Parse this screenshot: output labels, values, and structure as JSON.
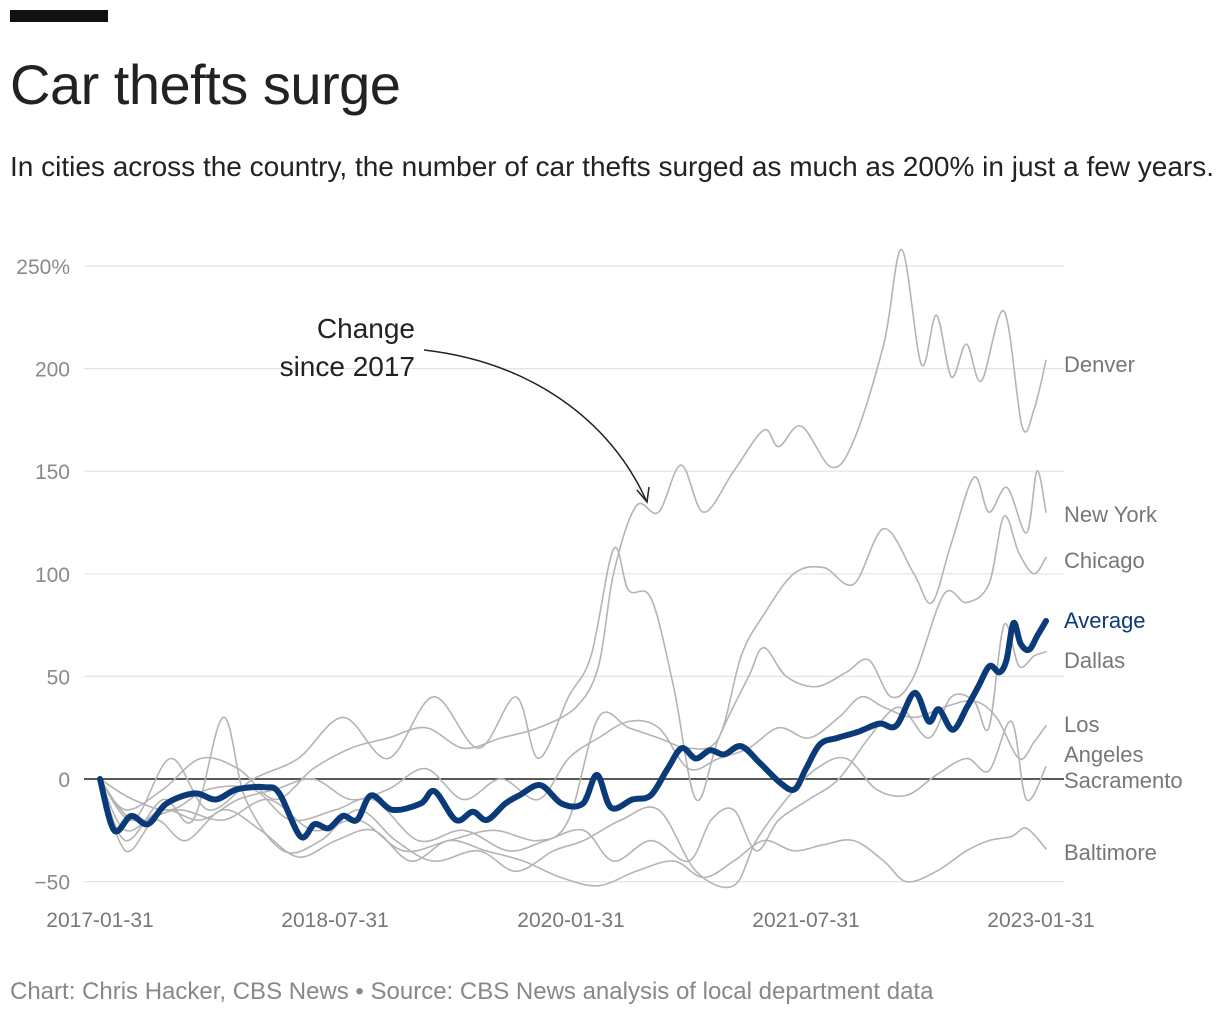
{
  "title": "Car thefts surge",
  "subtitle": "In cities across the country, the number of car thefts surged as much as 200% in just a few years.",
  "footer": "Chart: Chris Hacker, CBS News • Source: CBS News analysis of local department data",
  "annotation": {
    "line1": "Change",
    "line2": "since 2017"
  },
  "chart_data": {
    "type": "line",
    "title": "Car thefts surge",
    "xlabel": "",
    "ylabel": "",
    "x_ticks": [
      "2017-01-31",
      "2018-07-31",
      "2020-01-31",
      "2021-07-31",
      "2023-01-31"
    ],
    "y_ticks": [
      "250%",
      "200",
      "150",
      "100",
      "50",
      "0",
      "−50"
    ],
    "y_tick_values": [
      250,
      200,
      150,
      100,
      50,
      0,
      -50
    ],
    "ylim": [
      -55,
      260
    ],
    "x_range": [
      "2017-01-31",
      "2023-01-31"
    ],
    "grid": true,
    "legend": "direct labels at right end of lines",
    "colors": {
      "average": "#0b3a78",
      "cities": "#b4b4b4",
      "gridline": "#e3e3e3",
      "zero_line": "#222222",
      "city_label": "#777777",
      "tick_label": "#8a8a8a"
    },
    "series": [
      {
        "name": "Denver",
        "label_y": 202,
        "highlight": false,
        "values": [
          [
            2017.08,
            0
          ],
          [
            2017.25,
            -15
          ],
          [
            2017.5,
            -5
          ],
          [
            2017.75,
            10
          ],
          [
            2018.0,
            5
          ],
          [
            2018.25,
            -10
          ],
          [
            2018.5,
            5
          ],
          [
            2018.75,
            15
          ],
          [
            2019.0,
            20
          ],
          [
            2019.25,
            25
          ],
          [
            2019.5,
            15
          ],
          [
            2019.75,
            20
          ],
          [
            2020.0,
            25
          ],
          [
            2020.25,
            35
          ],
          [
            2020.4,
            55
          ],
          [
            2020.5,
            100
          ],
          [
            2020.65,
            133
          ],
          [
            2020.8,
            130
          ],
          [
            2020.95,
            153
          ],
          [
            2021.1,
            130
          ],
          [
            2021.3,
            150
          ],
          [
            2021.5,
            170
          ],
          [
            2021.6,
            162
          ],
          [
            2021.75,
            172
          ],
          [
            2021.95,
            152
          ],
          [
            2022.1,
            165
          ],
          [
            2022.3,
            212
          ],
          [
            2022.42,
            258
          ],
          [
            2022.55,
            202
          ],
          [
            2022.65,
            226
          ],
          [
            2022.75,
            196
          ],
          [
            2022.85,
            212
          ],
          [
            2022.95,
            194
          ],
          [
            2023.1,
            228
          ],
          [
            2023.22,
            172
          ],
          [
            2023.3,
            180
          ],
          [
            2023.38,
            204
          ]
        ]
      },
      {
        "name": "New York",
        "label_y": 128,
        "highlight": false,
        "values": [
          [
            2017.08,
            0
          ],
          [
            2017.3,
            -20
          ],
          [
            2017.6,
            -15
          ],
          [
            2017.9,
            -20
          ],
          [
            2018.2,
            -10
          ],
          [
            2018.5,
            -25
          ],
          [
            2018.8,
            -20
          ],
          [
            2019.1,
            -35
          ],
          [
            2019.4,
            -30
          ],
          [
            2019.7,
            -25
          ],
          [
            2020.0,
            -30
          ],
          [
            2020.2,
            -20
          ],
          [
            2020.4,
            30
          ],
          [
            2020.6,
            25
          ],
          [
            2020.8,
            20
          ],
          [
            2021.0,
            15
          ],
          [
            2021.2,
            20
          ],
          [
            2021.35,
            60
          ],
          [
            2021.5,
            80
          ],
          [
            2021.7,
            100
          ],
          [
            2021.9,
            103
          ],
          [
            2022.1,
            95
          ],
          [
            2022.3,
            122
          ],
          [
            2022.5,
            100
          ],
          [
            2022.62,
            86
          ],
          [
            2022.75,
            115
          ],
          [
            2022.9,
            147
          ],
          [
            2023.0,
            130
          ],
          [
            2023.12,
            142
          ],
          [
            2023.25,
            120
          ],
          [
            2023.32,
            150
          ],
          [
            2023.38,
            130
          ]
        ]
      },
      {
        "name": "Chicago",
        "label_y": 106,
        "highlight": false,
        "values": [
          [
            2017.08,
            0
          ],
          [
            2017.3,
            -20
          ],
          [
            2017.55,
            10
          ],
          [
            2017.8,
            -15
          ],
          [
            2018.1,
            0
          ],
          [
            2018.4,
            10
          ],
          [
            2018.7,
            30
          ],
          [
            2019.0,
            10
          ],
          [
            2019.3,
            40
          ],
          [
            2019.6,
            15
          ],
          [
            2019.85,
            40
          ],
          [
            2020.0,
            10
          ],
          [
            2020.2,
            40
          ],
          [
            2020.35,
            60
          ],
          [
            2020.5,
            112
          ],
          [
            2020.6,
            92
          ],
          [
            2020.75,
            88
          ],
          [
            2020.9,
            45
          ],
          [
            2021.05,
            -10
          ],
          [
            2021.2,
            20
          ],
          [
            2021.4,
            50
          ],
          [
            2021.5,
            64
          ],
          [
            2021.65,
            50
          ],
          [
            2021.85,
            45
          ],
          [
            2022.05,
            52
          ],
          [
            2022.2,
            58
          ],
          [
            2022.35,
            40
          ],
          [
            2022.5,
            50
          ],
          [
            2022.7,
            90
          ],
          [
            2022.85,
            86
          ],
          [
            2023.0,
            95
          ],
          [
            2023.1,
            128
          ],
          [
            2023.2,
            110
          ],
          [
            2023.3,
            100
          ],
          [
            2023.38,
            108
          ]
        ]
      },
      {
        "name": "Dallas",
        "label_y": 62,
        "highlight": false,
        "values": [
          [
            2017.08,
            0
          ],
          [
            2017.3,
            -10
          ],
          [
            2017.55,
            -15
          ],
          [
            2017.8,
            -5
          ],
          [
            2018.1,
            -5
          ],
          [
            2018.35,
            -20
          ],
          [
            2018.65,
            -15
          ],
          [
            2018.9,
            -10
          ],
          [
            2019.2,
            -30
          ],
          [
            2019.5,
            -25
          ],
          [
            2019.8,
            -35
          ],
          [
            2020.05,
            -30
          ],
          [
            2020.3,
            -25
          ],
          [
            2020.5,
            -40
          ],
          [
            2020.75,
            -30
          ],
          [
            2021.0,
            -40
          ],
          [
            2021.15,
            -20
          ],
          [
            2021.3,
            -15
          ],
          [
            2021.45,
            -35
          ],
          [
            2021.6,
            -20
          ],
          [
            2021.8,
            -10
          ],
          [
            2022.0,
            0
          ],
          [
            2022.2,
            20
          ],
          [
            2022.4,
            35
          ],
          [
            2022.6,
            20
          ],
          [
            2022.75,
            40
          ],
          [
            2022.9,
            38
          ],
          [
            2023.0,
            25
          ],
          [
            2023.1,
            75
          ],
          [
            2023.2,
            55
          ],
          [
            2023.3,
            60
          ],
          [
            2023.38,
            62
          ]
        ]
      },
      {
        "name": "Los Angeles",
        "label_y": 24,
        "highlight": false,
        "values": [
          [
            2017.08,
            0
          ],
          [
            2017.25,
            -25
          ],
          [
            2017.5,
            -15
          ],
          [
            2017.75,
            -20
          ],
          [
            2018.0,
            -10
          ],
          [
            2018.25,
            -5
          ],
          [
            2018.5,
            0
          ],
          [
            2018.75,
            -10
          ],
          [
            2019.0,
            -5
          ],
          [
            2019.25,
            5
          ],
          [
            2019.5,
            -10
          ],
          [
            2019.75,
            0
          ],
          [
            2020.0,
            -10
          ],
          [
            2020.2,
            10
          ],
          [
            2020.4,
            20
          ],
          [
            2020.6,
            28
          ],
          [
            2020.8,
            25
          ],
          [
            2021.0,
            5
          ],
          [
            2021.2,
            10
          ],
          [
            2021.4,
            15
          ],
          [
            2021.6,
            25
          ],
          [
            2021.8,
            20
          ],
          [
            2022.0,
            30
          ],
          [
            2022.15,
            40
          ],
          [
            2022.3,
            35
          ],
          [
            2022.5,
            30
          ],
          [
            2022.7,
            35
          ],
          [
            2022.9,
            38
          ],
          [
            2023.05,
            30
          ],
          [
            2023.2,
            10
          ],
          [
            2023.3,
            18
          ],
          [
            2023.38,
            26
          ]
        ]
      },
      {
        "name": "Sacramento",
        "label_y": 5,
        "highlight": false,
        "values": [
          [
            2017.08,
            0
          ],
          [
            2017.25,
            -30
          ],
          [
            2017.5,
            -10
          ],
          [
            2017.7,
            -20
          ],
          [
            2017.9,
            30
          ],
          [
            2018.05,
            -10
          ],
          [
            2018.3,
            -35
          ],
          [
            2018.55,
            -30
          ],
          [
            2018.8,
            -15
          ],
          [
            2019.05,
            -30
          ],
          [
            2019.3,
            -40
          ],
          [
            2019.6,
            -35
          ],
          [
            2019.85,
            -45
          ],
          [
            2020.1,
            -35
          ],
          [
            2020.3,
            -30
          ],
          [
            2020.55,
            -20
          ],
          [
            2020.8,
            -15
          ],
          [
            2021.05,
            -45
          ],
          [
            2021.3,
            -52
          ],
          [
            2021.45,
            -30
          ],
          [
            2021.65,
            -10
          ],
          [
            2021.85,
            5
          ],
          [
            2022.05,
            10
          ],
          [
            2022.25,
            -5
          ],
          [
            2022.45,
            -8
          ],
          [
            2022.65,
            2
          ],
          [
            2022.85,
            10
          ],
          [
            2023.0,
            4
          ],
          [
            2023.15,
            28
          ],
          [
            2023.25,
            -10
          ],
          [
            2023.38,
            6
          ]
        ]
      },
      {
        "name": "Baltimore",
        "label_y": -34,
        "highlight": false,
        "values": [
          [
            2017.08,
            0
          ],
          [
            2017.25,
            -35
          ],
          [
            2017.45,
            -20
          ],
          [
            2017.65,
            -30
          ],
          [
            2017.9,
            -15
          ],
          [
            2018.15,
            -25
          ],
          [
            2018.4,
            -38
          ],
          [
            2018.65,
            -30
          ],
          [
            2018.9,
            -25
          ],
          [
            2019.15,
            -40
          ],
          [
            2019.4,
            -30
          ],
          [
            2019.65,
            -35
          ],
          [
            2019.9,
            -40
          ],
          [
            2020.15,
            -48
          ],
          [
            2020.4,
            -52
          ],
          [
            2020.65,
            -45
          ],
          [
            2020.9,
            -40
          ],
          [
            2021.1,
            -48
          ],
          [
            2021.3,
            -40
          ],
          [
            2021.5,
            -30
          ],
          [
            2021.7,
            -35
          ],
          [
            2021.9,
            -32
          ],
          [
            2022.1,
            -30
          ],
          [
            2022.3,
            -40
          ],
          [
            2022.45,
            -50
          ],
          [
            2022.65,
            -45
          ],
          [
            2022.85,
            -35
          ],
          [
            2023.0,
            -30
          ],
          [
            2023.15,
            -28
          ],
          [
            2023.25,
            -24
          ],
          [
            2023.38,
            -34
          ]
        ]
      },
      {
        "name": "Average",
        "label_y": 77,
        "highlight": true,
        "values": [
          [
            2017.08,
            0
          ],
          [
            2017.18,
            -25
          ],
          [
            2017.3,
            -18
          ],
          [
            2017.42,
            -22
          ],
          [
            2017.55,
            -12
          ],
          [
            2017.75,
            -7
          ],
          [
            2017.9,
            -10
          ],
          [
            2018.05,
            -5
          ],
          [
            2018.25,
            -4
          ],
          [
            2018.35,
            -7
          ],
          [
            2018.5,
            -28
          ],
          [
            2018.6,
            -22
          ],
          [
            2018.7,
            -24
          ],
          [
            2018.8,
            -18
          ],
          [
            2018.9,
            -20
          ],
          [
            2019.0,
            -8
          ],
          [
            2019.15,
            -15
          ],
          [
            2019.35,
            -12
          ],
          [
            2019.45,
            -6
          ],
          [
            2019.6,
            -20
          ],
          [
            2019.72,
            -16
          ],
          [
            2019.82,
            -20
          ],
          [
            2019.95,
            -12
          ],
          [
            2020.05,
            -8
          ],
          [
            2020.2,
            -3
          ],
          [
            2020.35,
            -12
          ],
          [
            2020.5,
            -12
          ],
          [
            2020.6,
            2
          ],
          [
            2020.7,
            -14
          ],
          [
            2020.85,
            -10
          ],
          [
            2020.98,
            -8
          ],
          [
            2021.1,
            5
          ],
          [
            2021.2,
            15
          ],
          [
            2021.3,
            10
          ],
          [
            2021.4,
            14
          ],
          [
            2021.5,
            12
          ],
          [
            2021.62,
            16
          ],
          [
            2021.75,
            8
          ],
          [
            2021.9,
            -2
          ],
          [
            2022.0,
            -5
          ],
          [
            2022.08,
            5
          ],
          [
            2022.18,
            17
          ],
          [
            2022.3,
            20
          ],
          [
            2022.45,
            23
          ],
          [
            2022.6,
            27
          ],
          [
            2022.72,
            26
          ],
          [
            2022.85,
            42
          ],
          [
            2022.95,
            28
          ],
          [
            2023.02,
            34
          ],
          [
            2023.12,
            24
          ],
          [
            2023.22,
            35
          ],
          [
            2023.3,
            45
          ],
          [
            2023.38,
            55
          ],
          [
            2023.45,
            52
          ],
          [
            2023.5,
            58
          ],
          [
            2023.55,
            76
          ],
          [
            2023.6,
            66
          ],
          [
            2023.66,
            63
          ],
          [
            2023.72,
            70
          ],
          [
            2023.78,
            77
          ]
        ]
      }
    ]
  }
}
